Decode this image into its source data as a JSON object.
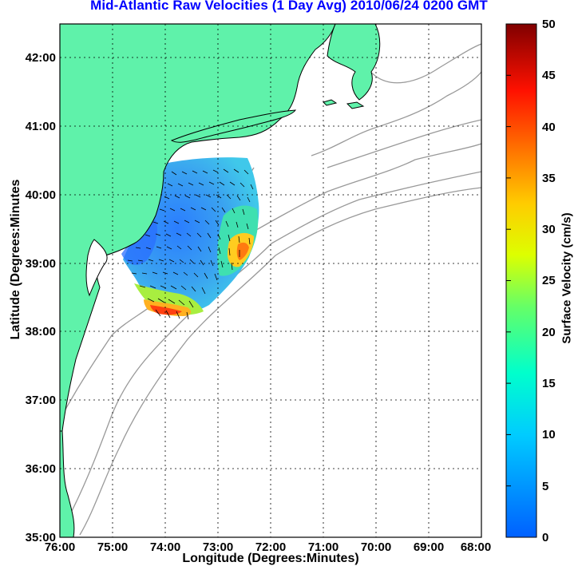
{
  "title": "Mid-Atlantic Raw Velocities (1 Day Avg) 2010/06/24 0200 GMT",
  "xlabel": "Longitude (Degrees:Minutes)",
  "ylabel": "Latitude (Degrees:Minutes",
  "colorbar_label": "Surface Velocity (cm/s)",
  "colors": {
    "land": "#5ff2aa",
    "coast": "#000000",
    "isobath": "#999999",
    "title": "#0000ff",
    "grid": "#000000"
  },
  "map": {
    "x_ticks": [
      "76:00",
      "75:00",
      "74:00",
      "73:00",
      "72:00",
      "71:00",
      "70:00",
      "69:00",
      "68:00"
    ],
    "y_ticks": [
      "35:00",
      "36:00",
      "37:00",
      "38:00",
      "39:00",
      "40:00",
      "41:00",
      "42:00"
    ],
    "lon_range": [
      -76,
      -68
    ],
    "lat_range": [
      35,
      42.5
    ],
    "grid": "dotted"
  },
  "colorbar": {
    "ticks": [
      "0",
      "5",
      "10",
      "15",
      "20",
      "25",
      "30",
      "35",
      "40",
      "45",
      "50"
    ],
    "range": [
      0,
      50
    ],
    "colormap": "jet"
  },
  "velocity_field": {
    "description_levels": [
      {
        "region": "inshore-central",
        "speed": 5
      },
      {
        "region": "offshore-shelfbreak",
        "speed": 32
      },
      {
        "region": "southern-edge",
        "speed": 40
      }
    ]
  }
}
